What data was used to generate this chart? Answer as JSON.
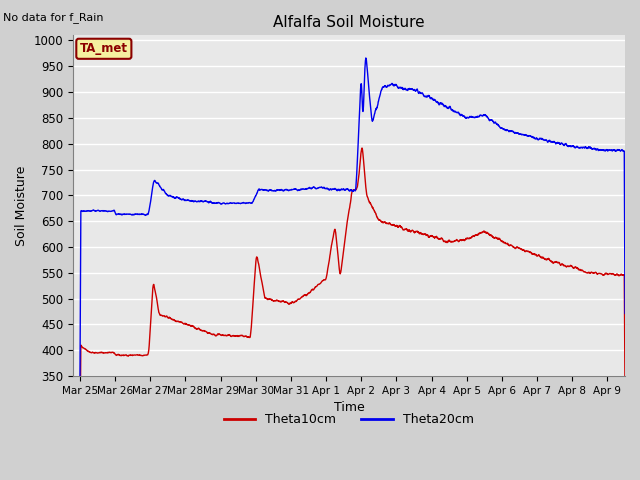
{
  "title": "Alfalfa Soil Moisture",
  "xlabel": "Time",
  "ylabel": "Soil Moisture",
  "no_data_label": "No data for f_Rain",
  "ta_met_label": "TA_met",
  "ylim": [
    350,
    1010
  ],
  "yticks": [
    350,
    400,
    450,
    500,
    550,
    600,
    650,
    700,
    750,
    800,
    850,
    900,
    950,
    1000
  ],
  "bg_color": "#e8e8e8",
  "line1_color": "#cc0000",
  "line2_color": "#0000ee",
  "legend_line1": "Theta10cm",
  "legend_line2": "Theta20cm",
  "x_tick_labels": [
    "Mar 25",
    "Mar 26",
    "Mar 27",
    "Mar 28",
    "Mar 29",
    "Mar 30",
    "Mar 31",
    "Apr 1",
    "Apr 2",
    "Apr 3",
    "Apr 4",
    "Apr 5",
    "Apr 6",
    "Apr 7",
    "Apr 8",
    "Apr 9"
  ],
  "x_tick_positions": [
    0,
    1,
    2,
    3,
    4,
    5,
    6,
    7,
    8,
    9,
    10,
    11,
    12,
    13,
    14,
    15
  ]
}
